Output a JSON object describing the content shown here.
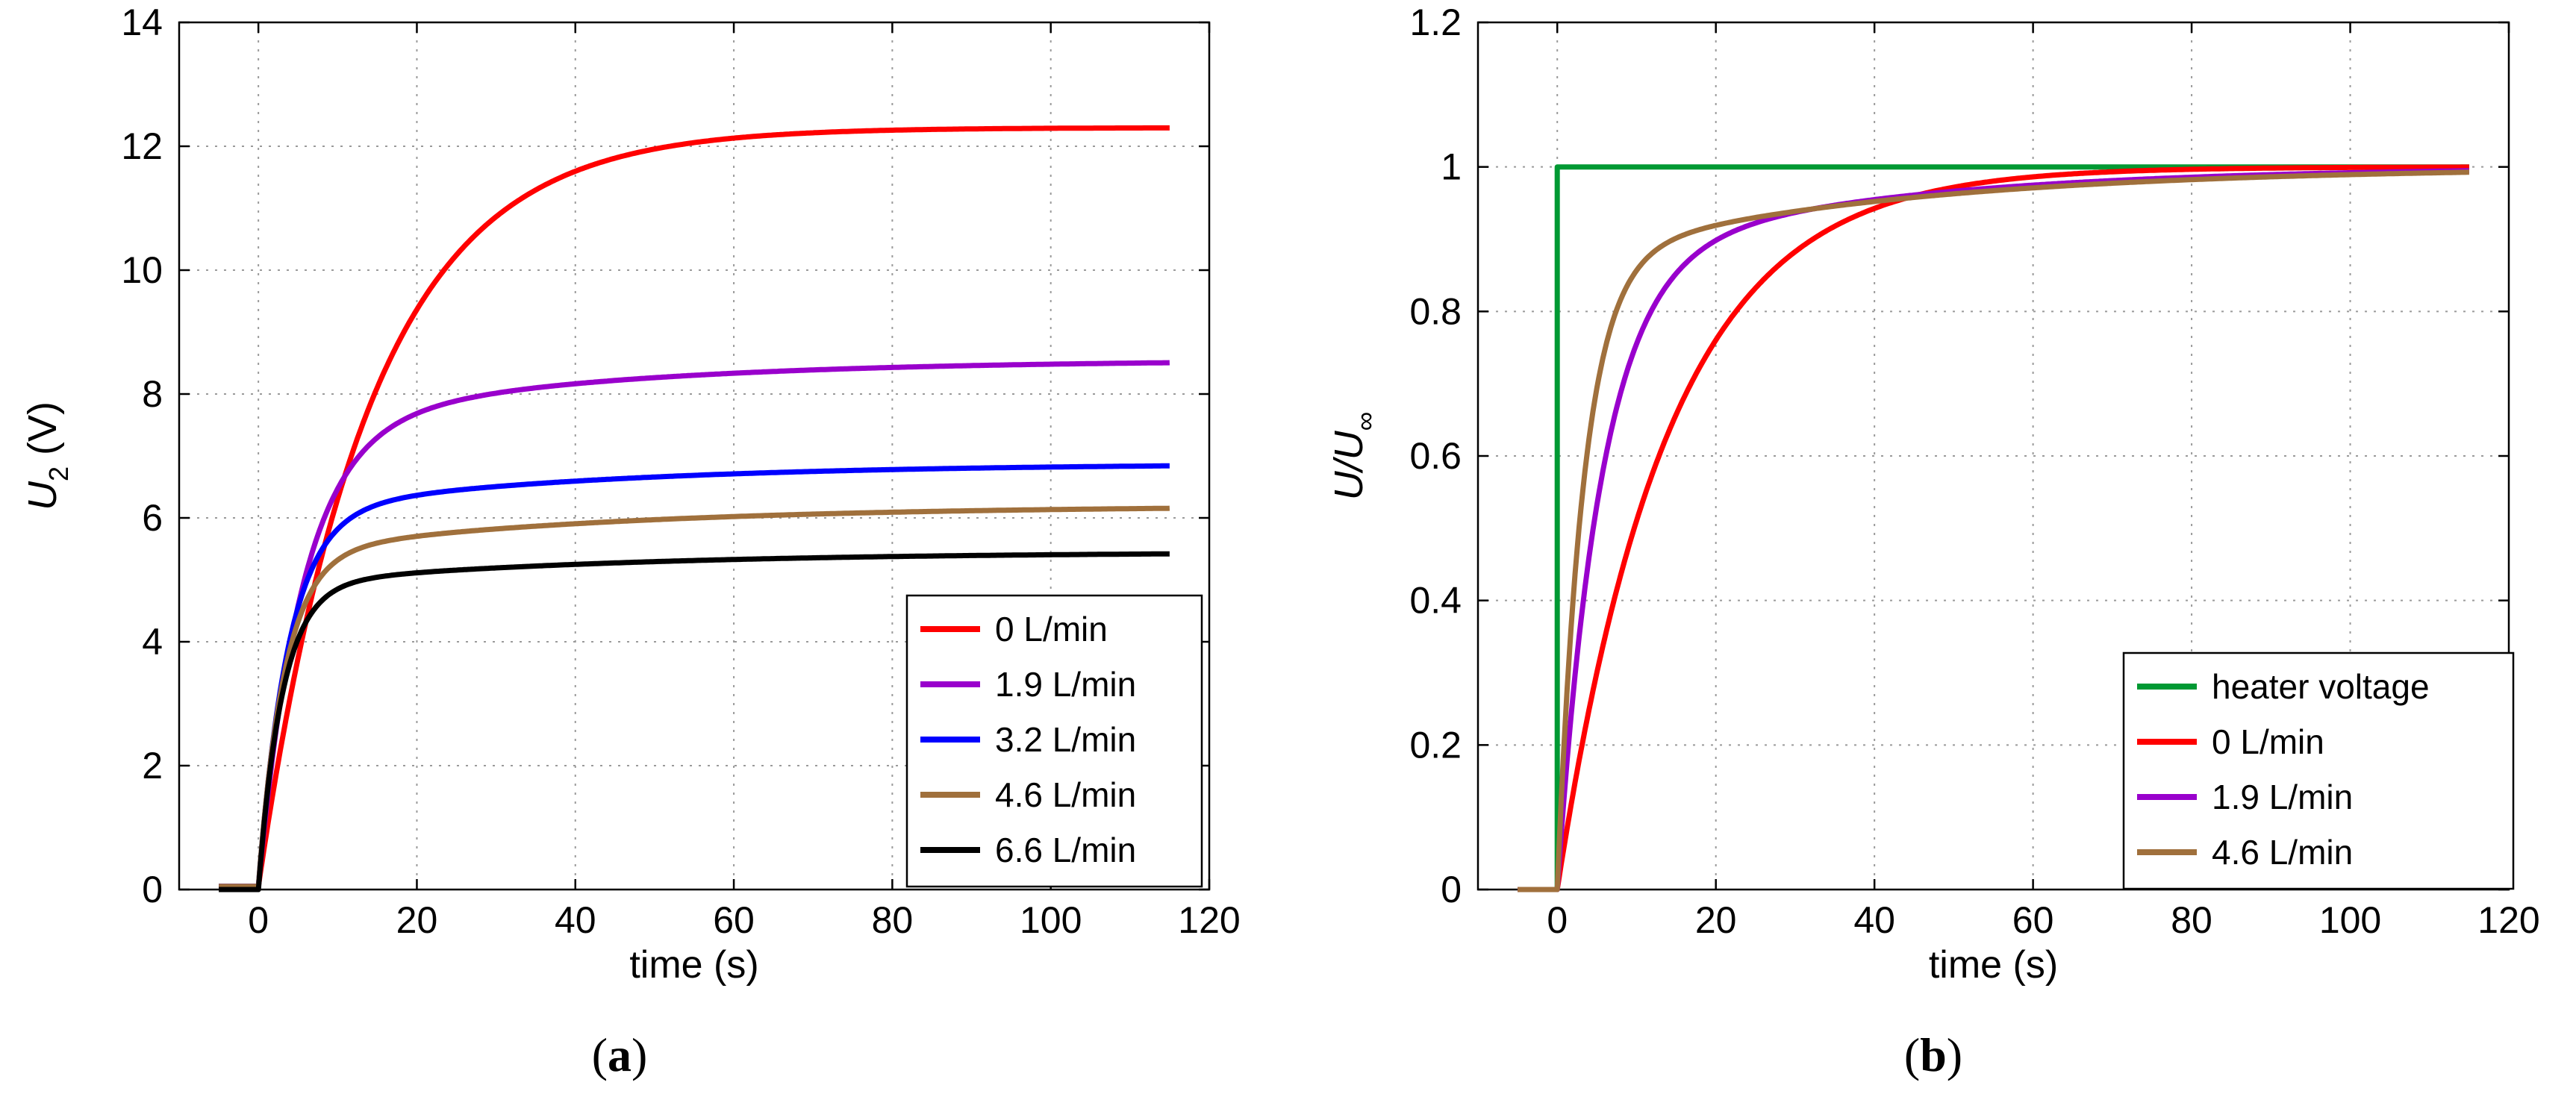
{
  "chart_data": [
    {
      "type": "line",
      "panel_label": "(a)",
      "panel_letter": "a",
      "xlabel": "time (s)",
      "ylabel": "U",
      "ylabel_sub": "2",
      "ylabel_suffix": " (V)",
      "xlim": [
        -10,
        120
      ],
      "ylim": [
        0,
        14
      ],
      "xticks": [
        0,
        20,
        40,
        60,
        80,
        100,
        120
      ],
      "yticks": [
        0,
        2,
        4,
        6,
        8,
        10,
        12,
        14
      ],
      "grid": true,
      "legend_position": "bottom-right",
      "series": [
        {
          "name": "0 L/min",
          "color": "#ff0000",
          "kind": "rise",
          "baseline": 0.05,
          "step_time": 0,
          "final": 12.3,
          "fast_fraction": 0.0,
          "tau_fast": 4,
          "tau_slow": 14
        },
        {
          "name": "1.9 L/min",
          "color": "#9900cc",
          "kind": "rise",
          "baseline": 0.05,
          "step_time": 0,
          "final": 8.55,
          "fast_fraction": 0.86,
          "tau_fast": 5.5,
          "tau_slow": 35
        },
        {
          "name": "3.2 L/min",
          "color": "#0000ff",
          "kind": "rise",
          "baseline": 0.05,
          "step_time": 0,
          "final": 6.88,
          "fast_fraction": 0.88,
          "tau_fast": 3.8,
          "tau_slow": 38
        },
        {
          "name": "4.6 L/min",
          "color": "#a0703c",
          "kind": "rise",
          "baseline": 0.05,
          "step_time": 0,
          "final": 6.2,
          "fast_fraction": 0.87,
          "tau_fast": 3.3,
          "tau_slow": 40
        },
        {
          "name": "6.6 L/min",
          "color": "#000000",
          "kind": "rise",
          "baseline": 0.0,
          "step_time": 0,
          "final": 5.45,
          "fast_fraction": 0.9,
          "tau_fast": 3.0,
          "tau_slow": 40
        }
      ]
    },
    {
      "type": "line",
      "panel_label": "(b)",
      "panel_letter": "b",
      "xlabel": "time (s)",
      "ylabel": "U/U",
      "ylabel_sub": "∞",
      "ylabel_suffix": "",
      "xlim": [
        -10,
        120
      ],
      "ylim": [
        0,
        1.2
      ],
      "xticks": [
        0,
        20,
        40,
        60,
        80,
        100,
        120
      ],
      "yticks": [
        0,
        0.2,
        0.4,
        0.6,
        0.8,
        1,
        1.2
      ],
      "grid": true,
      "legend_position": "bottom-right",
      "series": [
        {
          "name": "heater voltage",
          "color": "#009933",
          "kind": "step",
          "baseline": 0.0,
          "step_time": 0,
          "final": 1.0
        },
        {
          "name": "0 L/min",
          "color": "#ff0000",
          "kind": "rise",
          "baseline": 0.0,
          "step_time": 0,
          "final": 1.0,
          "fast_fraction": 0.0,
          "tau_fast": 4,
          "tau_slow": 14
        },
        {
          "name": "1.9 L/min",
          "color": "#9900cc",
          "kind": "rise",
          "baseline": 0.0,
          "step_time": 0,
          "final": 1.0,
          "fast_fraction": 0.86,
          "tau_fast": 5.5,
          "tau_slow": 35
        },
        {
          "name": "4.6 L/min",
          "color": "#a0703c",
          "kind": "rise",
          "baseline": 0.0,
          "step_time": 0,
          "final": 1.0,
          "fast_fraction": 0.87,
          "tau_fast": 3.3,
          "tau_slow": 40
        }
      ]
    }
  ]
}
